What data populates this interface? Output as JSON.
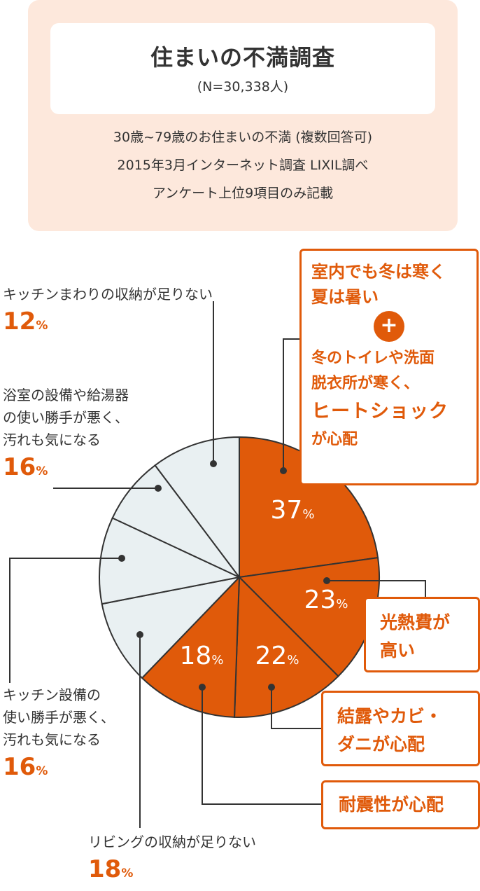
{
  "header": {
    "title": "住まいの不満調査",
    "sample": "(N=30,338人)",
    "desc_line1": "30歳~79歳のお住まいの不満 (複数回答可)",
    "desc_line2": "2015年3月インターネット調査 LIXIL調べ",
    "desc_line3": "アンケート上位9項目のみ記載"
  },
  "labels": {
    "kitchen_storage": {
      "line1": "キッチンまわりの収納が足りない",
      "pct": "12"
    },
    "bath": {
      "line1": "浴室の設備や給湯器",
      "line2": "の使い勝手が悪く、",
      "line3": "汚れも気になる",
      "pct": "16"
    },
    "kitchen_equip": {
      "line1": "キッチン設備の",
      "line2": "使い勝手が悪く、",
      "line3": "汚れも気になる",
      "pct": "16"
    },
    "living_storage": {
      "line1": "リビングの収納が足りない",
      "pct": "18"
    },
    "heat": {
      "line1": "室内でも冬は寒く",
      "line2": "夏は暑い",
      "line3": "冬のトイレや洗面",
      "line4": "脱衣所が寒く、",
      "line5": "ヒートショック",
      "line6": "が心配"
    },
    "cost": {
      "line1": "光熱費が",
      "line2": "高い"
    },
    "dew": {
      "line1": "結露やカビ・",
      "line2": "ダニが心配"
    },
    "quake": {
      "line1": "耐震性が心配"
    },
    "pct_unit": "%",
    "plus": "+"
  },
  "colors": {
    "accent": "#e05a0a",
    "grey_slice": "#e9f0f2",
    "outline": "#333333"
  },
  "chart_data": {
    "type": "pie",
    "title": "住まいの不満調査",
    "unit": "%",
    "slices": [
      {
        "label": "室内でも冬は寒く夏は暑い + 冬のトイレや洗面脱衣所が寒く、ヒートショックが心配",
        "value": 37,
        "highlight": true,
        "show_value_inside": true
      },
      {
        "label": "光熱費が高い",
        "value": 23,
        "highlight": true,
        "show_value_inside": true
      },
      {
        "label": "結露やカビ・ダニが心配",
        "value": 22,
        "highlight": true,
        "show_value_inside": true
      },
      {
        "label": "耐震性が心配",
        "value": 18,
        "highlight": true,
        "show_value_inside": true
      },
      {
        "label": "リビングの収納が足りない",
        "value": 18,
        "highlight": false,
        "show_value_inside": false
      },
      {
        "label": "キッチン設備の使い勝手が悪く、汚れも気になる",
        "value": 16,
        "highlight": false,
        "show_value_inside": false
      },
      {
        "label": "浴室の設備や給湯器の使い勝手が悪く、汚れも気になる",
        "value": 16,
        "highlight": false,
        "show_value_inside": false
      },
      {
        "label": "キッチンまわりの収納が足りない",
        "value": 12,
        "highlight": false,
        "show_value_inside": false
      }
    ]
  }
}
